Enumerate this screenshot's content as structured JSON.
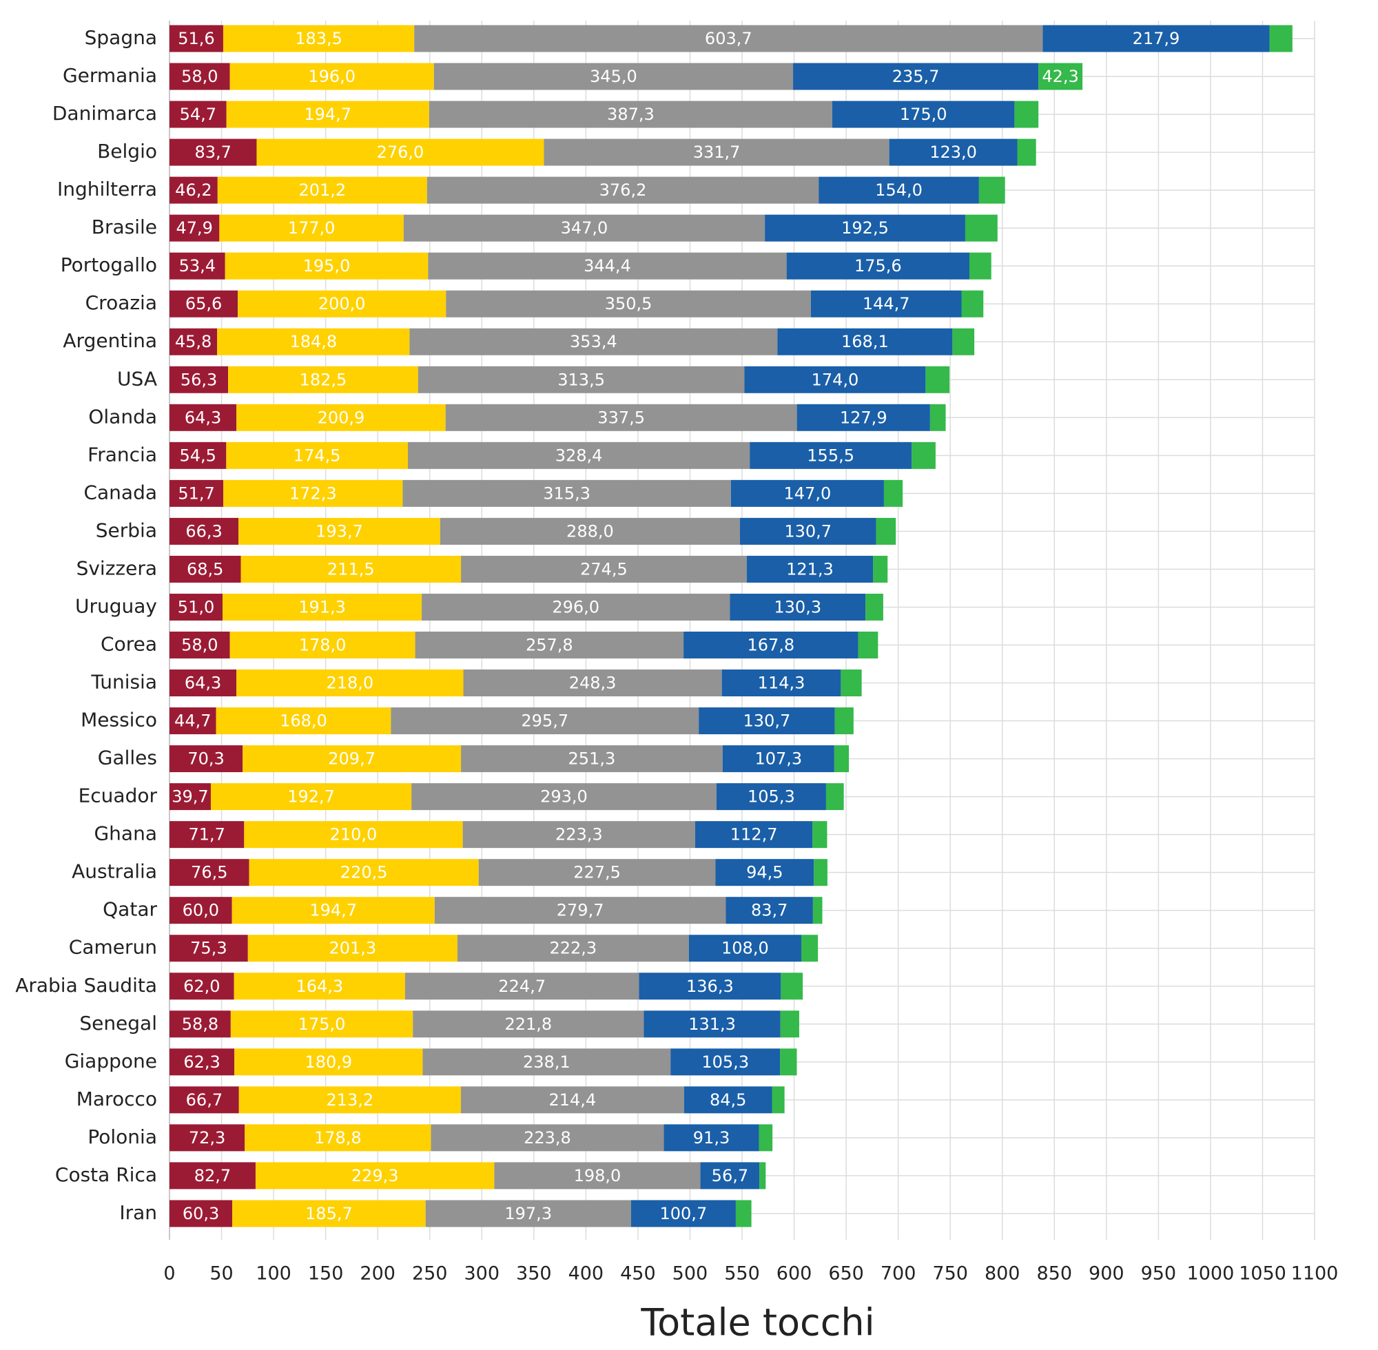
{
  "chart_data": {
    "type": "stacked-bar",
    "orientation": "horizontal",
    "x_label": "Totale tocchi",
    "categories": [
      "Spagna",
      "Germania",
      "Danimarca",
      "Belgio",
      "Inghilterra",
      "Brasile",
      "Portogallo",
      "Croazia",
      "Argentina",
      "USA",
      "Olanda",
      "Francia",
      "Canada",
      "Serbia",
      "Svizzera",
      "Uruguay",
      "Corea",
      "Tunisia",
      "Messico",
      "Galles",
      "Ecuador",
      "Ghana",
      "Australia",
      "Qatar",
      "Camerun",
      "Arabia Saudita",
      "Senegal",
      "Giappone",
      "Marocco",
      "Polonia",
      "Costa Rica",
      "Iran"
    ],
    "series": [
      {
        "color": "#9b1b35",
        "values": [
          51.6,
          58.0,
          54.7,
          83.7,
          46.2,
          47.9,
          53.4,
          65.6,
          45.8,
          56.3,
          64.3,
          54.5,
          51.7,
          66.3,
          68.5,
          51.0,
          58.0,
          64.3,
          44.7,
          70.3,
          39.7,
          71.7,
          76.5,
          60.0,
          75.3,
          62.0,
          58.8,
          62.3,
          66.7,
          72.3,
          82.7,
          60.3
        ],
        "value_labels": [
          "51,6",
          "58,0",
          "54,7",
          "83,7",
          "46,2",
          "47,9",
          "53,4",
          "65,6",
          "45,8",
          "56,3",
          "64,3",
          "54,5",
          "51,7",
          "66,3",
          "68,5",
          "51,0",
          "58,0",
          "64,3",
          "44,7",
          "70,3",
          "39,7",
          "71,7",
          "76,5",
          "60,0",
          "75,3",
          "62,0",
          "58,8",
          "62,3",
          "66,7",
          "72,3",
          "82,7",
          "60,3"
        ]
      },
      {
        "color": "#ffd100",
        "values": [
          183.5,
          196.0,
          194.7,
          276.0,
          201.2,
          177.0,
          195.0,
          200.0,
          184.8,
          182.5,
          200.9,
          174.5,
          172.3,
          193.7,
          211.5,
          191.3,
          178.0,
          218.0,
          168.0,
          209.7,
          192.7,
          210.0,
          220.5,
          194.7,
          201.3,
          164.3,
          175.0,
          180.9,
          213.2,
          178.8,
          229.3,
          185.7
        ],
        "value_labels": [
          "183,5",
          "196,0",
          "194,7",
          "276,0",
          "201,2",
          "177,0",
          "195,0",
          "200,0",
          "184,8",
          "182,5",
          "200,9",
          "174,5",
          "172,3",
          "193,7",
          "211,5",
          "191,3",
          "178,0",
          "218,0",
          "168,0",
          "209,7",
          "192,7",
          "210,0",
          "220,5",
          "194,7",
          "201,3",
          "164,3",
          "175,0",
          "180,9",
          "213,2",
          "178,8",
          "229,3",
          "185,7"
        ]
      },
      {
        "color": "#939393",
        "values": [
          603.7,
          345.0,
          387.3,
          331.7,
          376.2,
          347.0,
          344.4,
          350.5,
          353.4,
          313.5,
          337.5,
          328.4,
          315.3,
          288.0,
          274.5,
          296.0,
          257.8,
          248.3,
          295.7,
          251.3,
          293.0,
          223.3,
          227.5,
          279.7,
          222.3,
          224.7,
          221.8,
          238.1,
          214.4,
          223.8,
          198.0,
          197.3
        ],
        "value_labels": [
          "603,7",
          "345,0",
          "387,3",
          "331,7",
          "376,2",
          "347,0",
          "344,4",
          "350,5",
          "353,4",
          "313,5",
          "337,5",
          "328,4",
          "315,3",
          "288,0",
          "274,5",
          "296,0",
          "257,8",
          "248,3",
          "295,7",
          "251,3",
          "293,0",
          "223,3",
          "227,5",
          "279,7",
          "222,3",
          "224,7",
          "221,8",
          "238,1",
          "214,4",
          "223,8",
          "198,0",
          "197,3"
        ]
      },
      {
        "color": "#1a5fa8",
        "values": [
          217.9,
          235.7,
          175.0,
          123.0,
          154.0,
          192.5,
          175.6,
          144.7,
          168.1,
          174.0,
          127.9,
          155.5,
          147.0,
          130.7,
          121.3,
          130.3,
          167.8,
          114.3,
          130.7,
          107.3,
          105.3,
          112.7,
          94.5,
          83.7,
          108.0,
          136.3,
          131.3,
          105.3,
          84.5,
          91.3,
          56.7,
          100.7
        ],
        "value_labels": [
          "217,9",
          "235,7",
          "175,0",
          "123,0",
          "154,0",
          "192,5",
          "175,6",
          "144,7",
          "168,1",
          "174,0",
          "127,9",
          "155,5",
          "147,0",
          "130,7",
          "121,3",
          "130,3",
          "167,8",
          "114,3",
          "130,7",
          "107,3",
          "105,3",
          "112,7",
          "94,5",
          "83,7",
          "108,0",
          "136,3",
          "131,3",
          "105,3",
          "84,5",
          "91,3",
          "56,7",
          "100,7"
        ]
      },
      {
        "color": "#34b94a",
        "values": [
          22,
          42.3,
          23,
          18,
          25,
          31,
          21,
          21,
          21,
          23,
          15,
          23,
          18,
          19,
          14,
          17,
          19,
          20,
          18,
          14,
          17,
          14,
          13,
          9,
          16,
          21,
          18,
          16,
          12,
          13,
          6,
          15
        ],
        "value_labels": [
          null,
          "42,3",
          null,
          null,
          null,
          null,
          null,
          null,
          null,
          null,
          null,
          null,
          null,
          null,
          null,
          null,
          null,
          null,
          null,
          null,
          null,
          null,
          null,
          null,
          null,
          null,
          null,
          null,
          null,
          null,
          null,
          null
        ]
      }
    ],
    "xlim": [
      0,
      1100
    ],
    "xticks": [
      0,
      50,
      100,
      150,
      200,
      250,
      300,
      350,
      400,
      450,
      500,
      550,
      600,
      650,
      700,
      750,
      800,
      850,
      900,
      950,
      1000,
      1050,
      1100
    ],
    "grid": true
  }
}
